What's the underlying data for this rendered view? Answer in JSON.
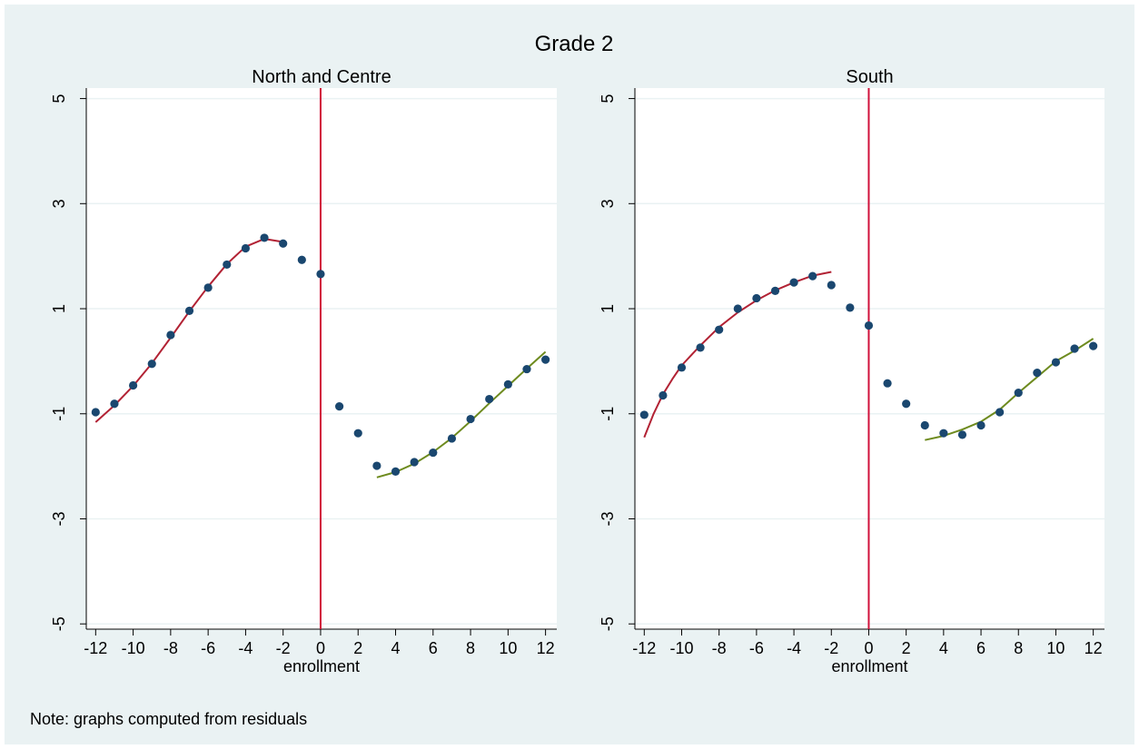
{
  "title": "Grade 2",
  "note": "Note: graphs computed from residuals",
  "colors": {
    "background": "#eaf2f3",
    "plot_bg": "#ffffff",
    "grid": "#eaf2f3",
    "points": "#1a476f",
    "fit_left": "#b22234",
    "fit_right": "#6e8b1f",
    "cutoff": "#d0103a"
  },
  "chart_data": [
    {
      "type": "scatter",
      "title": "North and Centre",
      "xlabel": "enrollment",
      "ylabel": "",
      "xlim": [
        -12.5,
        12.6
      ],
      "ylim": [
        -5.1,
        5.2
      ],
      "xticks": [
        -12,
        -10,
        -8,
        -6,
        -4,
        -2,
        0,
        2,
        4,
        6,
        8,
        10,
        12
      ],
      "yticks": [
        -5,
        -3,
        -1,
        1,
        3,
        5
      ],
      "cutoff": 0,
      "grid": true,
      "points": {
        "x": [
          -12,
          -11,
          -10,
          -9,
          -8,
          -7,
          -6,
          -5,
          -4,
          -3,
          -2,
          -1,
          0,
          1,
          2,
          3,
          4,
          5,
          6,
          7,
          8,
          9,
          10,
          11,
          12
        ],
        "y": [
          -0.97,
          -0.81,
          -0.46,
          -0.05,
          0.5,
          0.96,
          1.4,
          1.84,
          2.15,
          2.35,
          2.24,
          1.93,
          1.66,
          -0.86,
          -1.37,
          -1.99,
          -2.1,
          -1.92,
          -1.74,
          -1.47,
          -1.1,
          -0.72,
          -0.44,
          -0.15,
          0.03
        ]
      },
      "fits": [
        {
          "side": "left",
          "x": [
            -12,
            -11,
            -10,
            -9,
            -8,
            -7,
            -6,
            -5,
            -4,
            -3,
            -2
          ],
          "y": [
            -1.16,
            -0.84,
            -0.47,
            -0.04,
            0.45,
            0.95,
            1.42,
            1.85,
            2.18,
            2.33,
            2.27
          ]
        },
        {
          "side": "right",
          "x": [
            3,
            4,
            5,
            6,
            7,
            8,
            9,
            10,
            11,
            12
          ],
          "y": [
            -2.21,
            -2.11,
            -1.95,
            -1.73,
            -1.46,
            -1.14,
            -0.8,
            -0.47,
            -0.14,
            0.18
          ]
        }
      ]
    },
    {
      "type": "scatter",
      "title": "South",
      "xlabel": "enrollment",
      "ylabel": "",
      "xlim": [
        -12.5,
        12.6
      ],
      "ylim": [
        -5.1,
        5.2
      ],
      "xticks": [
        -12,
        -10,
        -8,
        -6,
        -4,
        -2,
        0,
        2,
        4,
        6,
        8,
        10,
        12
      ],
      "yticks": [
        -5,
        -3,
        -1,
        1,
        3,
        5
      ],
      "cutoff": 0,
      "grid": true,
      "points": {
        "x": [
          -12,
          -11,
          -10,
          -9,
          -8,
          -7,
          -6,
          -5,
          -4,
          -3,
          -2,
          -1,
          0,
          1,
          2,
          3,
          4,
          5,
          6,
          7,
          8,
          9,
          10,
          11,
          12
        ],
        "y": [
          -1.02,
          -0.65,
          -0.12,
          0.26,
          0.6,
          1.0,
          1.2,
          1.34,
          1.5,
          1.62,
          1.45,
          1.02,
          0.68,
          -0.42,
          -0.81,
          -1.22,
          -1.37,
          -1.4,
          -1.22,
          -0.97,
          -0.6,
          -0.22,
          -0.02,
          0.24,
          0.29
        ]
      },
      "fits": [
        {
          "side": "left",
          "x": [
            -12,
            -11.5,
            -11,
            -10.5,
            -10,
            -9,
            -8,
            -7,
            -6,
            -5,
            -4,
            -3,
            -2
          ],
          "y": [
            -1.45,
            -1.0,
            -0.63,
            -0.34,
            -0.08,
            0.3,
            0.65,
            0.93,
            1.16,
            1.35,
            1.5,
            1.63,
            1.7
          ]
        },
        {
          "side": "right",
          "x": [
            3,
            4,
            5,
            6,
            7,
            8,
            9,
            10,
            11,
            12
          ],
          "y": [
            -1.5,
            -1.42,
            -1.3,
            -1.15,
            -0.92,
            -0.6,
            -0.3,
            0.0,
            0.2,
            0.43
          ]
        }
      ]
    }
  ]
}
